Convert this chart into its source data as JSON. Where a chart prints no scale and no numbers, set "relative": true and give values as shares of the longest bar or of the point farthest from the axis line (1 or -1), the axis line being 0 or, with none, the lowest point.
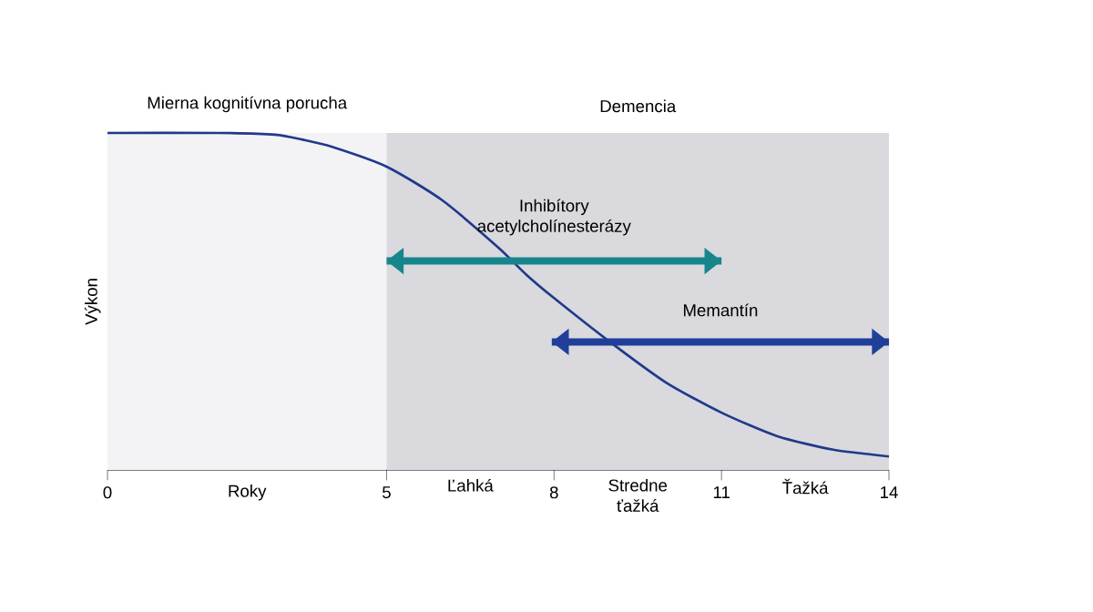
{
  "chart_data": {
    "type": "line",
    "xlabel": "Roky",
    "ylabel": "Výkon",
    "relative": true,
    "xlim": [
      0,
      14
    ],
    "xticks": [
      0,
      5,
      8,
      11,
      14
    ],
    "series": [
      {
        "color": "#1f3a8a",
        "x": [
          0,
          2,
          3,
          3.5,
          4,
          5,
          6,
          7,
          7.5,
          8,
          9,
          10,
          11,
          12,
          13,
          14
        ],
        "values": [
          1,
          1,
          0.995,
          0.98,
          0.96,
          0.9,
          0.8,
          0.66,
          0.58,
          0.51,
          0.38,
          0.26,
          0.17,
          0.1,
          0.06,
          0.04
        ]
      },
      {
        "type": "line",
        "name": "Inhibítory acetylcholínesterázy",
        "color": "#17868c",
        "x": [
          5,
          11
        ],
        "values": [
          0.62,
          0.62
        ]
      },
      {
        "type": "line",
        "name": "Memantín",
        "color": "#1f3f99",
        "x": [
          7.96,
          14
        ],
        "values": [
          0.38,
          0.38
        ]
      }
    ],
    "bands": [
      {
        "axis": "x",
        "from": 0,
        "to": 5,
        "label": "Mierna kognitívna porucha",
        "color": "#f3f3f6"
      },
      {
        "axis": "x",
        "from": 5,
        "to": 14,
        "label": "Demencia",
        "color": "#d9d9de"
      }
    ],
    "annotations": [
      {
        "text": "Ľahká",
        "x": 6.5,
        "y": 0
      },
      {
        "text": "Stredne ťažká",
        "x": 9.5,
        "y": 0
      },
      {
        "text": "Ťažká",
        "x": 12.5,
        "y": 0
      }
    ]
  }
}
